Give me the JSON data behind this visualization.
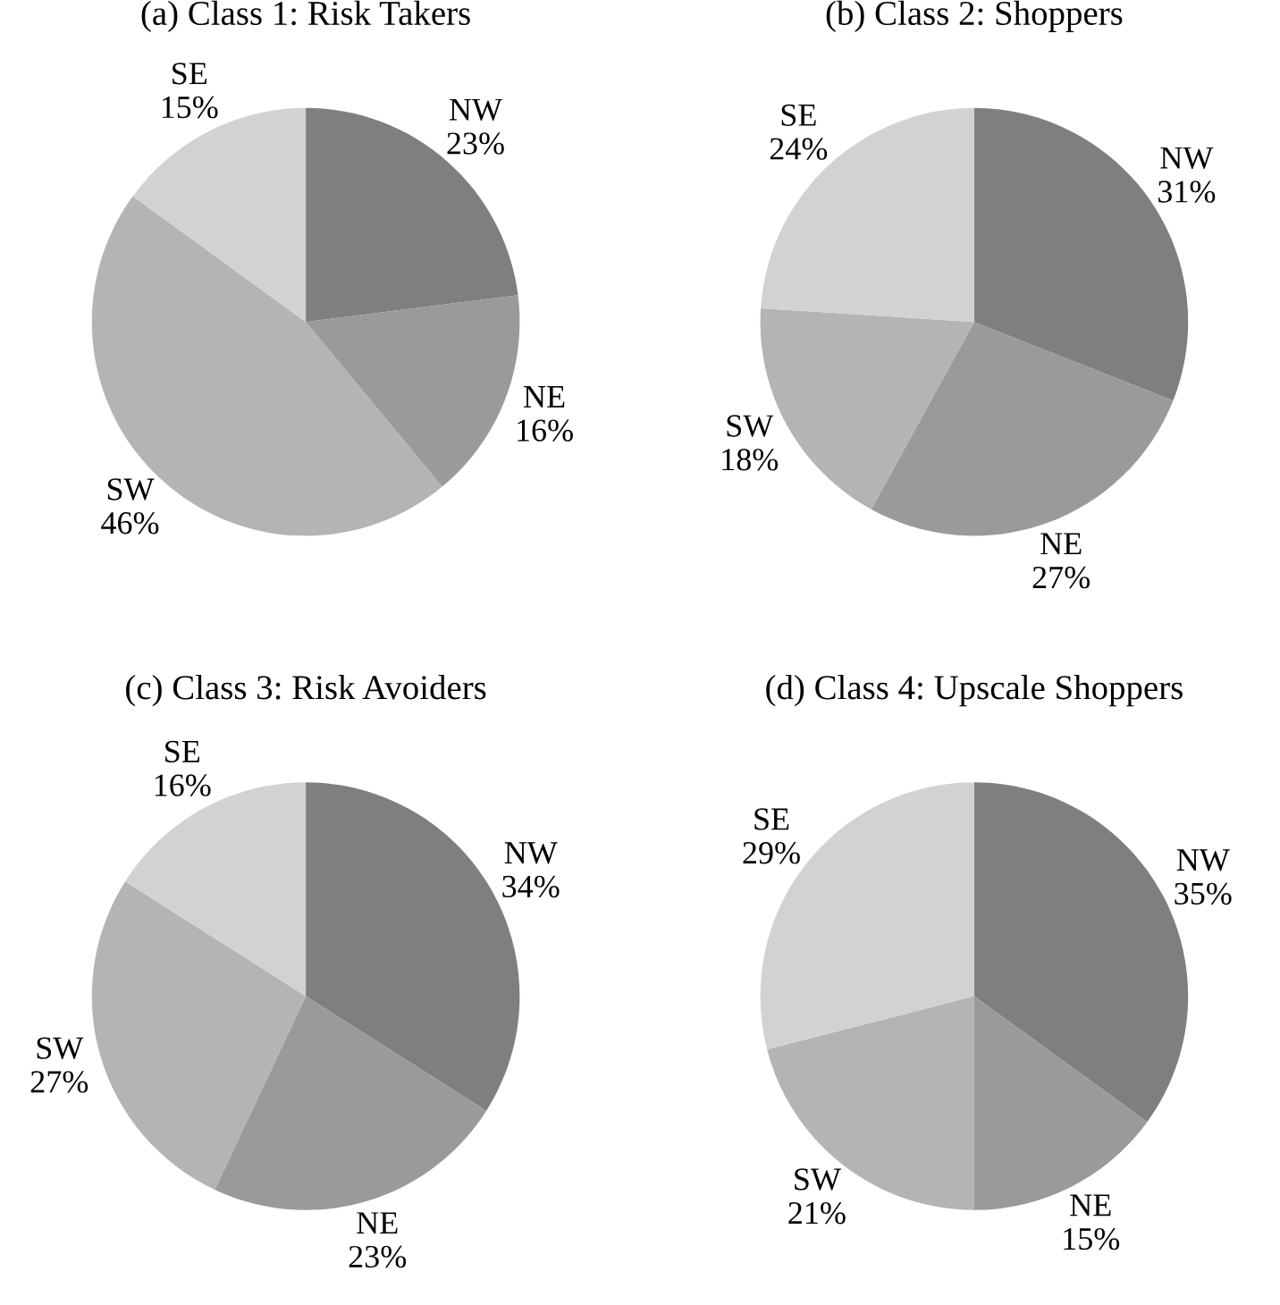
{
  "chart_data": [
    {
      "type": "pie",
      "title": "(a) Class 1: Risk Takers",
      "categories": [
        "NW",
        "NE",
        "SW",
        "SE"
      ],
      "values": [
        23,
        16,
        46,
        15
      ],
      "value_labels": [
        "23%",
        "16%",
        "46%",
        "15%"
      ],
      "colors": [
        "#7f7f7f",
        "#9a9a9a",
        "#b4b4b4",
        "#d2d2d2"
      ]
    },
    {
      "type": "pie",
      "title": "(b) Class 2: Shoppers",
      "categories": [
        "NW",
        "NE",
        "SW",
        "SE"
      ],
      "values": [
        31,
        27,
        18,
        24
      ],
      "value_labels": [
        "31%",
        "27%",
        "18%",
        "24%"
      ],
      "colors": [
        "#7f7f7f",
        "#9a9a9a",
        "#b4b4b4",
        "#d2d2d2"
      ]
    },
    {
      "type": "pie",
      "title": "(c) Class 3: Risk Avoiders",
      "categories": [
        "NW",
        "NE",
        "SW",
        "SE"
      ],
      "values": [
        34,
        23,
        27,
        16
      ],
      "value_labels": [
        "34%",
        "23%",
        "27%",
        "16%"
      ],
      "colors": [
        "#7f7f7f",
        "#9a9a9a",
        "#b4b4b4",
        "#d2d2d2"
      ]
    },
    {
      "type": "pie",
      "title": "(d) Class 4: Upscale Shoppers",
      "categories": [
        "NW",
        "NE",
        "SW",
        "SE"
      ],
      "values": [
        35,
        15,
        21,
        29
      ],
      "value_labels": [
        "35%",
        "15%",
        "21%",
        "29%"
      ],
      "colors": [
        "#7f7f7f",
        "#9a9a9a",
        "#b4b4b4",
        "#d2d2d2"
      ]
    }
  ]
}
